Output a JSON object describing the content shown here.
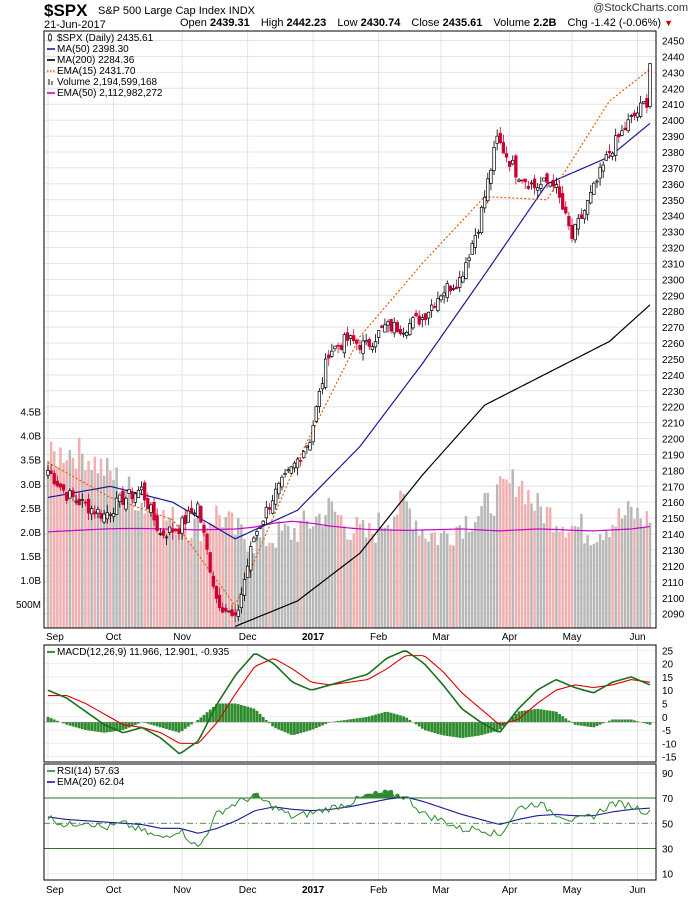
{
  "header": {
    "symbol": "$SPX",
    "name": "S&P 500 Large Cap Index",
    "exchange": "INDX",
    "date": "21-Jun-2017",
    "open_label": "Open",
    "open": "2439.31",
    "high_label": "High",
    "high": "2442.23",
    "low_label": "Low",
    "low": "2430.74",
    "close_label": "Close",
    "close": "2435.61",
    "volume_label": "Volume",
    "volume": "2.2B",
    "chg_label": "Chg",
    "chg": "-1.42 (-0.06%)",
    "brand": "@StockCharts.com"
  },
  "colors": {
    "up_candle": "#000000",
    "down_candle": "#cc0033",
    "ma50": "#1a1a99",
    "ma200": "#000000",
    "ema15": "#e06010",
    "volume_up": "#b8b8b8",
    "volume_down": "#f0b0b0",
    "volume_ema": "#cc00cc",
    "macd": "#1e6e1e",
    "macd_signal": "#dd0000",
    "histogram": "#2e8b2e",
    "rsi": "#2e8b2e",
    "rsi_ema": "#1a1a99"
  },
  "chart_data": [
    {
      "type": "line",
      "panel": "price",
      "subtype": "candlestick",
      "x_ticks": [
        "Sep",
        "Oct",
        "Nov",
        "Dec",
        "2017",
        "Feb",
        "Mar",
        "Apr",
        "May",
        "Jun"
      ],
      "y_ticks": [
        2090,
        2100,
        2110,
        2120,
        2130,
        2140,
        2150,
        2160,
        2170,
        2180,
        2190,
        2200,
        2210,
        2220,
        2230,
        2240,
        2250,
        2260,
        2270,
        2280,
        2290,
        2300,
        2310,
        2320,
        2330,
        2340,
        2350,
        2360,
        2370,
        2380,
        2390,
        2400,
        2410,
        2420,
        2430,
        2440,
        2450
      ],
      "ylim": [
        2081,
        2456
      ],
      "volume_ticks": [
        "500M",
        "1.0B",
        "1.5B",
        "2.0B",
        "2.5B",
        "3.0B",
        "3.5B",
        "4.0B",
        "4.5B"
      ],
      "volume_tick_values": [
        0.5,
        1.0,
        1.5,
        2.0,
        2.5,
        3.0,
        3.5,
        4.0,
        4.5
      ],
      "legend": [
        {
          "label": "$SPX (Daily) 2435.61",
          "style": "candle"
        },
        {
          "label": "MA(50) 2398.30",
          "style": "line",
          "color": "#1a1a99"
        },
        {
          "label": "MA(200) 2284.36",
          "style": "line",
          "color": "#000000"
        },
        {
          "label": "EMA(15) 2431.70",
          "style": "dotted",
          "color": "#e06010"
        },
        {
          "label": "Volume 2,194,599,168",
          "style": "bars"
        },
        {
          "label": "EMA(50) 2,112,982,272",
          "style": "line",
          "color": "#cc00cc"
        }
      ],
      "series": [
        {
          "name": "Close",
          "x": [
            0,
            6,
            12,
            18,
            24,
            30,
            36,
            42,
            48,
            54,
            60,
            66,
            72,
            78,
            84,
            90,
            96,
            102,
            108,
            114,
            120,
            126,
            132,
            138,
            144,
            150,
            156,
            162,
            168,
            174,
            180,
            186,
            192
          ],
          "values": [
            2180,
            2165,
            2158,
            2152,
            2162,
            2168,
            2140,
            2144,
            2158,
            2100,
            2085,
            2138,
            2163,
            2180,
            2200,
            2255,
            2262,
            2258,
            2270,
            2270,
            2276,
            2292,
            2300,
            2334,
            2388,
            2368,
            2358,
            2362,
            2326,
            2352,
            2380,
            2398,
            2412
          ]
        },
        {
          "name": "MA(50)",
          "x": [
            0,
            20,
            40,
            60,
            80,
            100,
            120,
            140,
            160,
            180,
            193
          ],
          "values": [
            2163,
            2170,
            2160,
            2137,
            2155,
            2195,
            2247,
            2303,
            2360,
            2377,
            2398
          ]
        },
        {
          "name": "MA(200)",
          "x": [
            60,
            80,
            100,
            120,
            140,
            160,
            180,
            193
          ],
          "values": [
            2082,
            2098,
            2128,
            2177,
            2221,
            2241,
            2261,
            2284
          ]
        },
        {
          "name": "EMA(15)",
          "x": [
            0,
            20,
            40,
            60,
            80,
            100,
            120,
            140,
            160,
            180,
            193
          ],
          "values": [
            2185,
            2163,
            2149,
            2095,
            2186,
            2264,
            2310,
            2352,
            2350,
            2412,
            2432
          ]
        },
        {
          "name": "Volume",
          "unit": "B",
          "values": [
            3.5,
            3.7,
            3.6,
            3.3,
            3.0,
            2.6,
            2.3,
            2.2,
            2.1,
            2.4,
            2.0,
            1.8,
            1.9,
            2.0,
            2.2,
            2.5,
            2.1,
            1.9,
            2.3,
            2.6,
            2.0,
            1.9,
            2.2,
            2.4,
            2.8,
            3.1,
            2.5,
            2.3,
            2.1,
            2.0,
            2.2,
            2.4,
            2.2
          ]
        },
        {
          "name": "Volume EMA(50)",
          "unit": "B",
          "values": [
            2.0,
            2.02,
            2.04,
            2.06,
            2.07,
            2.07,
            2.06,
            2.05,
            2.04,
            2.05,
            2.06,
            2.1,
            2.18,
            2.22,
            2.18,
            2.12,
            2.08,
            2.05,
            2.04,
            2.03,
            2.04,
            2.05,
            2.06,
            2.04,
            2.02,
            2.04,
            2.06,
            2.05,
            2.03,
            2.02,
            2.04,
            2.06,
            2.11
          ]
        }
      ]
    },
    {
      "type": "line",
      "panel": "macd",
      "legend": [
        {
          "label": "MACD(12,26,9) 11.966, 12.901, -0.935",
          "color": "#1e6e1e"
        }
      ],
      "y_ticks": [
        -15,
        -10,
        -5,
        0,
        5,
        10,
        15,
        20,
        25
      ],
      "ylim": [
        -17,
        27
      ],
      "series": [
        {
          "name": "MACD",
          "values": [
            10,
            7,
            2,
            -3,
            -6,
            -4,
            -8,
            -14,
            -9,
            5,
            16,
            24,
            20,
            13,
            10,
            12,
            14,
            16,
            22,
            25,
            20,
            12,
            3,
            -2,
            -6,
            3,
            10,
            14,
            11,
            9,
            13,
            15,
            12
          ]
        },
        {
          "name": "Signal",
          "values": [
            8,
            8,
            5,
            1,
            -3,
            -4,
            -6,
            -10,
            -10,
            -2,
            9,
            19,
            22,
            18,
            13,
            12,
            13,
            14,
            18,
            23,
            23,
            17,
            9,
            3,
            -3,
            -1,
            5,
            10,
            12,
            11,
            12,
            14,
            13
          ]
        },
        {
          "name": "Histogram",
          "values": [
            2,
            -1,
            -3,
            -4,
            -3,
            0,
            -2,
            -4,
            1,
            7,
            7,
            5,
            -2,
            -5,
            -3,
            0,
            1,
            2,
            4,
            2,
            -3,
            -5,
            -6,
            -5,
            -3,
            4,
            5,
            4,
            -1,
            -2,
            1,
            1,
            -1
          ]
        }
      ]
    },
    {
      "type": "line",
      "panel": "rsi",
      "legend": [
        {
          "label": "RSI(14) 57.63",
          "color": "#2e8b2e"
        },
        {
          "label": "EMA(20) 62.04",
          "color": "#1a1a99"
        }
      ],
      "y_ticks": [
        10,
        30,
        50,
        70,
        90
      ],
      "ylim": [
        5,
        97
      ],
      "series": [
        {
          "name": "RSI(14)",
          "values": [
            55,
            48,
            52,
            46,
            50,
            44,
            38,
            45,
            30,
            58,
            66,
            72,
            63,
            55,
            58,
            62,
            66,
            72,
            74,
            71,
            57,
            52,
            45,
            46,
            40,
            62,
            66,
            58,
            52,
            56,
            66,
            64,
            58
          ]
        },
        {
          "name": "EMA(20)",
          "values": [
            55,
            53,
            52,
            51,
            50,
            49,
            46,
            46,
            42,
            46,
            52,
            60,
            63,
            61,
            60,
            61,
            63,
            66,
            69,
            71,
            67,
            62,
            57,
            53,
            49,
            53,
            56,
            57,
            56,
            56,
            59,
            61,
            62
          ]
        }
      ]
    }
  ]
}
